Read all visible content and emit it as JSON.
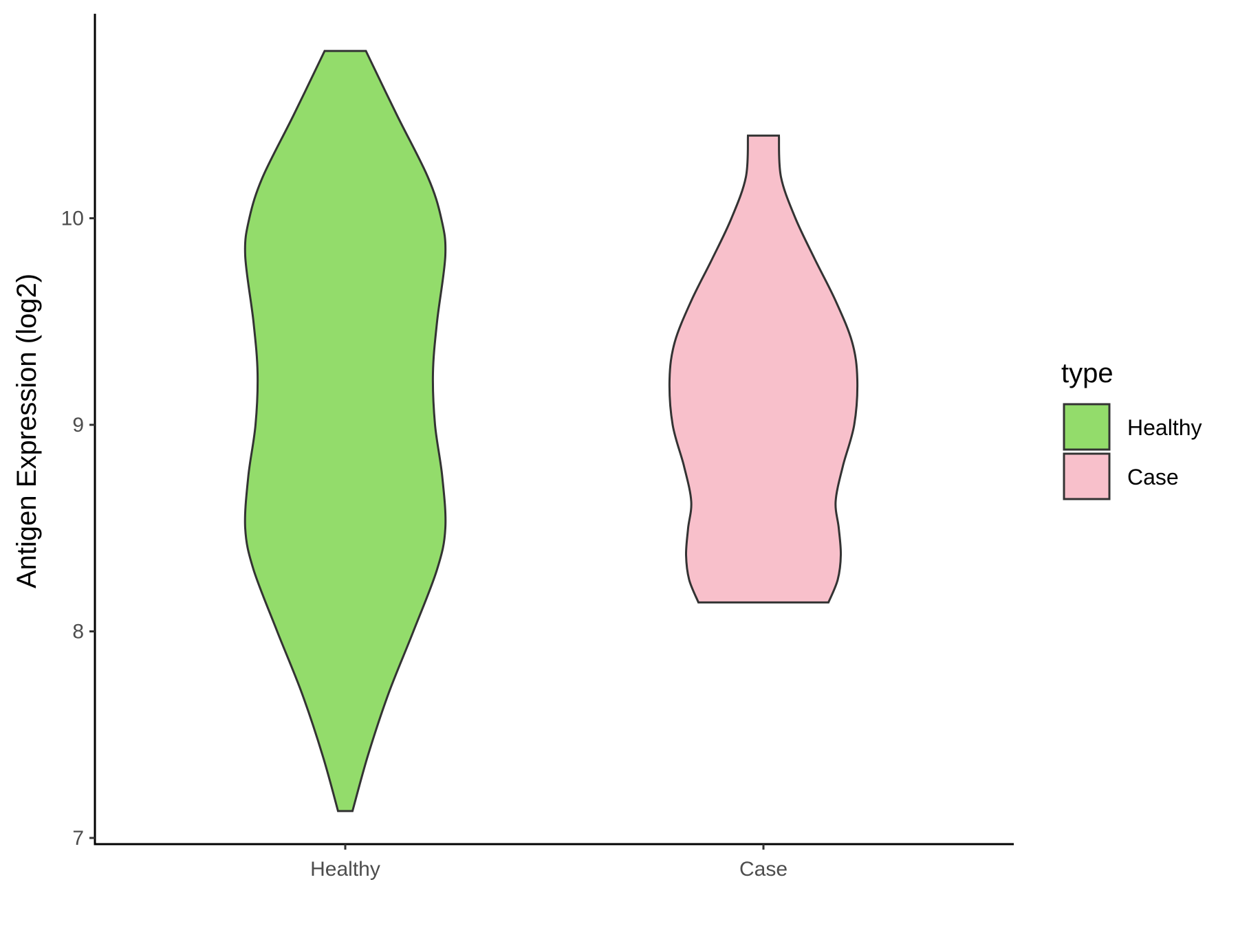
{
  "chart_data": {
    "type": "violin",
    "title": "",
    "xlabel": "",
    "ylabel": "Antigen Expression (log2)",
    "ylim": [
      6.97,
      10.99
    ],
    "yticks": [
      7,
      8,
      9,
      10
    ],
    "ytick_labels": [
      "7",
      "8",
      "9",
      "10"
    ],
    "categories": [
      "Healthy",
      "Case"
    ],
    "grid": false,
    "legend": {
      "title": "type",
      "position": "right",
      "entries": [
        "Healthy",
        "Case"
      ]
    },
    "series": [
      {
        "name": "Healthy",
        "color": "#93dc6b",
        "y_min": 7.13,
        "y_max": 10.81,
        "density": [
          [
            7.13,
            0.07
          ],
          [
            7.4,
            0.22
          ],
          [
            7.7,
            0.42
          ],
          [
            8.0,
            0.66
          ],
          [
            8.3,
            0.89
          ],
          [
            8.5,
            0.97
          ],
          [
            8.75,
            0.94
          ],
          [
            9.0,
            0.87
          ],
          [
            9.25,
            0.85
          ],
          [
            9.5,
            0.89
          ],
          [
            9.82,
            0.97
          ],
          [
            10.0,
            0.93
          ],
          [
            10.2,
            0.8
          ],
          [
            10.5,
            0.5
          ],
          [
            10.81,
            0.2
          ]
        ]
      },
      {
        "name": "Case",
        "color": "#f8c0cb",
        "y_min": 8.14,
        "y_max": 10.4,
        "density": [
          [
            8.14,
            0.63
          ],
          [
            8.25,
            0.72
          ],
          [
            8.37,
            0.75
          ],
          [
            8.5,
            0.73
          ],
          [
            8.63,
            0.7
          ],
          [
            8.8,
            0.77
          ],
          [
            9.0,
            0.88
          ],
          [
            9.22,
            0.91
          ],
          [
            9.4,
            0.86
          ],
          [
            9.6,
            0.7
          ],
          [
            9.8,
            0.5
          ],
          [
            10.0,
            0.31
          ],
          [
            10.2,
            0.17
          ],
          [
            10.4,
            0.15
          ]
        ]
      }
    ]
  }
}
